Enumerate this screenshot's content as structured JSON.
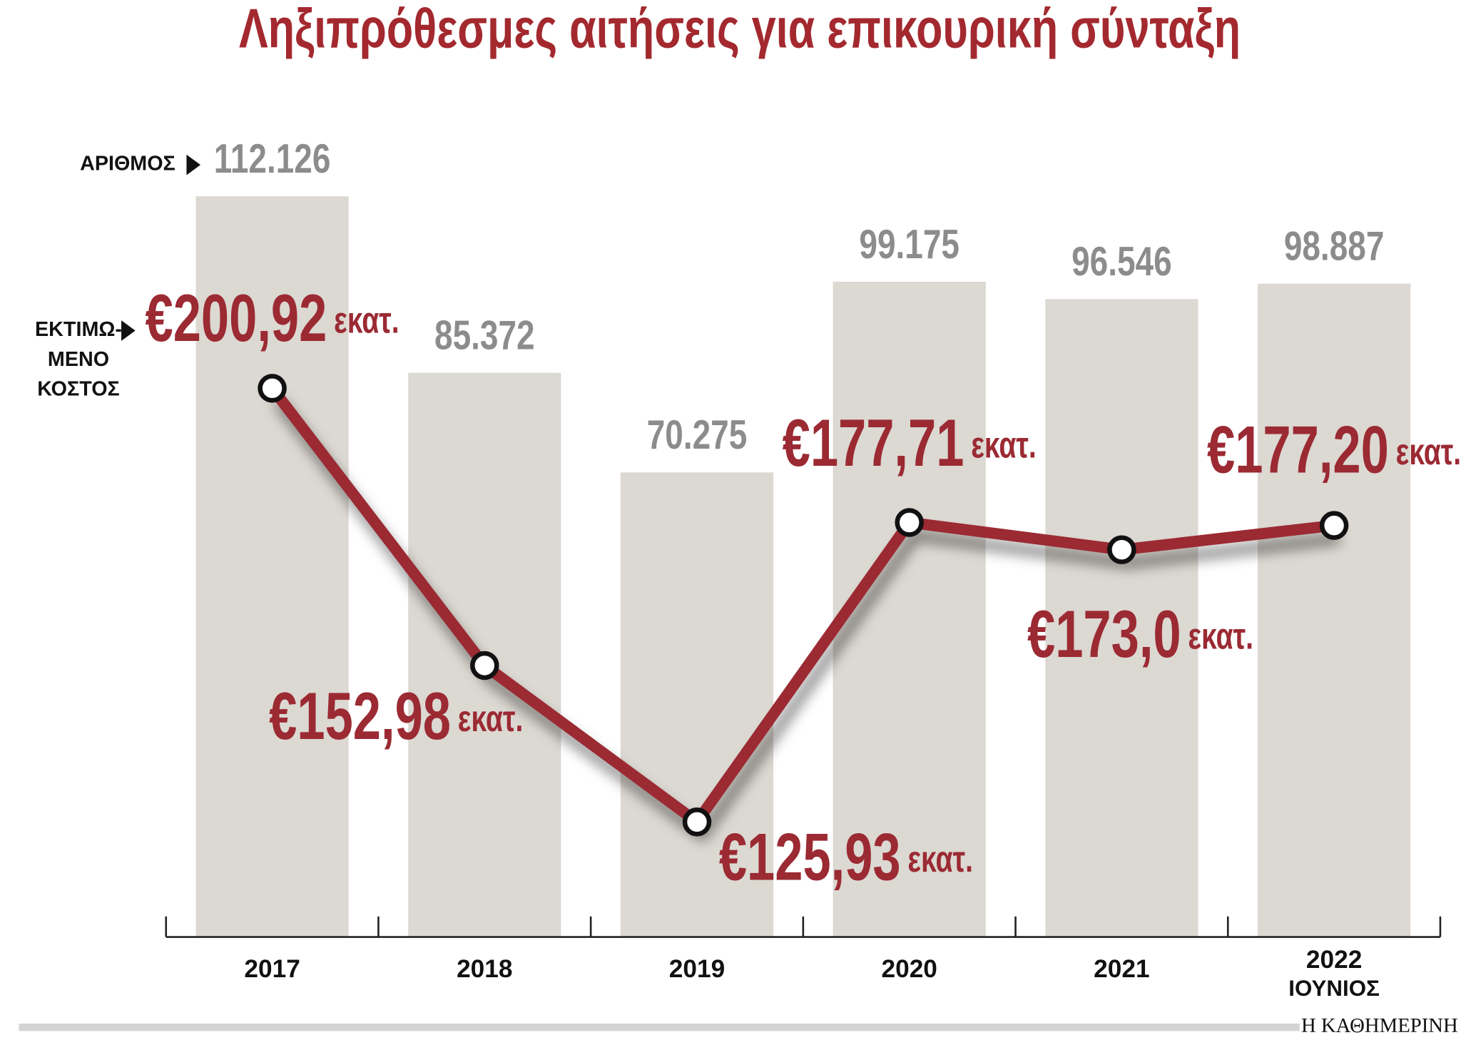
{
  "chart_data": {
    "type": "bar",
    "title": "Ληξιπρόθεσμες αιτήσεις για επικουρική σύνταξη",
    "categories": [
      "2017",
      "2018",
      "2019",
      "2020",
      "2021",
      "2022"
    ],
    "last_category_note": "ΙΟΥΝΙΟΣ",
    "ylim": [
      0,
      120000
    ],
    "y2lim": [
      106.2,
      243.1
    ],
    "unit_label": "εκατ.",
    "source": "Η ΚΑΘΗΜΕΡΙΝΗ",
    "series": [
      {
        "type": "bar",
        "name": "ΑΡΙΘΜΟΣ",
        "color": "#dcd8d2",
        "label_color": "#8c8c8c",
        "values": [
          112126,
          85372,
          70275,
          99175,
          96546,
          98887
        ],
        "value_labels": [
          "112.126",
          "85.372",
          "70.275",
          "99.175",
          "96.546",
          "98.887"
        ]
      },
      {
        "type": "line",
        "axis": "y2",
        "name_lines": [
          "ΕΚΤΙΜΩ-",
          "ΜΕΝΟ",
          "ΚΟΣΤΟΣ"
        ],
        "color": "#9b2a33",
        "values": [
          200.92,
          152.98,
          125.93,
          177.71,
          173.0,
          177.2
        ],
        "value_labels": [
          "€200,92",
          "€152,98",
          "€125,93",
          "€177,71",
          "€173,0",
          "€177,20"
        ]
      }
    ]
  }
}
